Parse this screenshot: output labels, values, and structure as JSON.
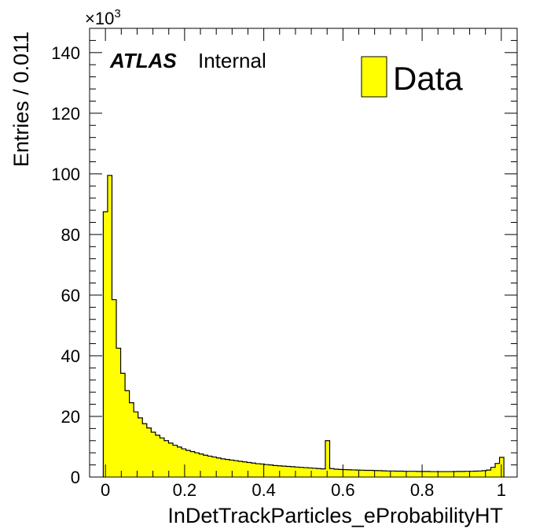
{
  "chart_data": {
    "type": "bar",
    "style": "histogram",
    "xlabel": "InDetTrackParticles_eProbabilityHT",
    "ylabel": "Entries / 0.011",
    "y_multiplier": "×10",
    "y_multiplier_exp": "3",
    "xlim": [
      -0.04,
      1.04
    ],
    "ylim": [
      0,
      148
    ],
    "bin_start": -0.0055,
    "bin_width": 0.011,
    "x_ticks": [
      0,
      0.2,
      0.4,
      0.6,
      0.8,
      1
    ],
    "x_tick_labels": [
      "0",
      "0.2",
      "0.4",
      "0.6",
      "0.8",
      "1"
    ],
    "y_ticks": [
      0,
      20,
      40,
      60,
      80,
      100,
      120,
      140
    ],
    "y_tick_labels": [
      "0",
      "20",
      "40",
      "60",
      "80",
      "100",
      "120",
      "140"
    ],
    "series": [
      {
        "name": "Data",
        "color": "#ffff00",
        "values": [
          87.5,
          99.5,
          58.5,
          42.5,
          34.2,
          28.5,
          24.5,
          21.5,
          19.5,
          17.6,
          16.2,
          14.8,
          13.8,
          12.9,
          12.0,
          11.2,
          10.5,
          9.9,
          9.3,
          8.8,
          8.4,
          8.0,
          7.6,
          7.2,
          6.9,
          6.6,
          6.3,
          6.0,
          5.8,
          5.6,
          5.4,
          5.2,
          5.0,
          4.8,
          4.6,
          4.4,
          4.3,
          4.1,
          4.0,
          3.8,
          3.7,
          3.6,
          3.5,
          3.4,
          3.3,
          3.2,
          3.1,
          3.0,
          2.9,
          2.8,
          2.7,
          12.0,
          2.8,
          2.6,
          2.5,
          2.45,
          2.4,
          2.35,
          2.3,
          2.25,
          2.2,
          2.2,
          2.15,
          2.1,
          2.05,
          2.0,
          2.0,
          1.95,
          1.95,
          1.9,
          1.9,
          1.9,
          1.85,
          1.85,
          1.85,
          1.8,
          1.8,
          1.8,
          1.8,
          1.8,
          1.8,
          1.85,
          1.85,
          1.9,
          1.9,
          1.95,
          2.0,
          2.1,
          2.3,
          3.2,
          4.5,
          6.5
        ]
      }
    ]
  },
  "branding": {
    "experiment": "ATLAS",
    "status": "Internal"
  }
}
